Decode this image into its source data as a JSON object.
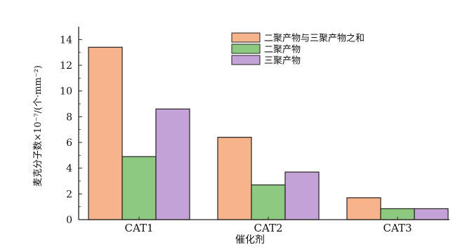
{
  "chart_data": {
    "type": "bar",
    "categories": [
      "CAT1",
      "CAT2",
      "CAT3"
    ],
    "series": [
      {
        "name": "二聚产物与三聚产物之和",
        "values": [
          13.4,
          6.4,
          1.7
        ],
        "color": "#f7b48a"
      },
      {
        "name": "二聚产物",
        "values": [
          4.9,
          2.7,
          0.85
        ],
        "color": "#8dc97e"
      },
      {
        "name": "三聚产物",
        "values": [
          8.6,
          3.7,
          0.85
        ],
        "color": "#c5a2d8"
      }
    ],
    "ylim": [
      0,
      15
    ],
    "yticks": [
      0,
      2,
      4,
      6,
      8,
      10,
      12,
      14
    ],
    "ylabel": "麦克分子数×10⁻⁷/(个·mm⁻²)",
    "xlabel": "催化剂",
    "legend_position": "top-right",
    "grid": false
  }
}
